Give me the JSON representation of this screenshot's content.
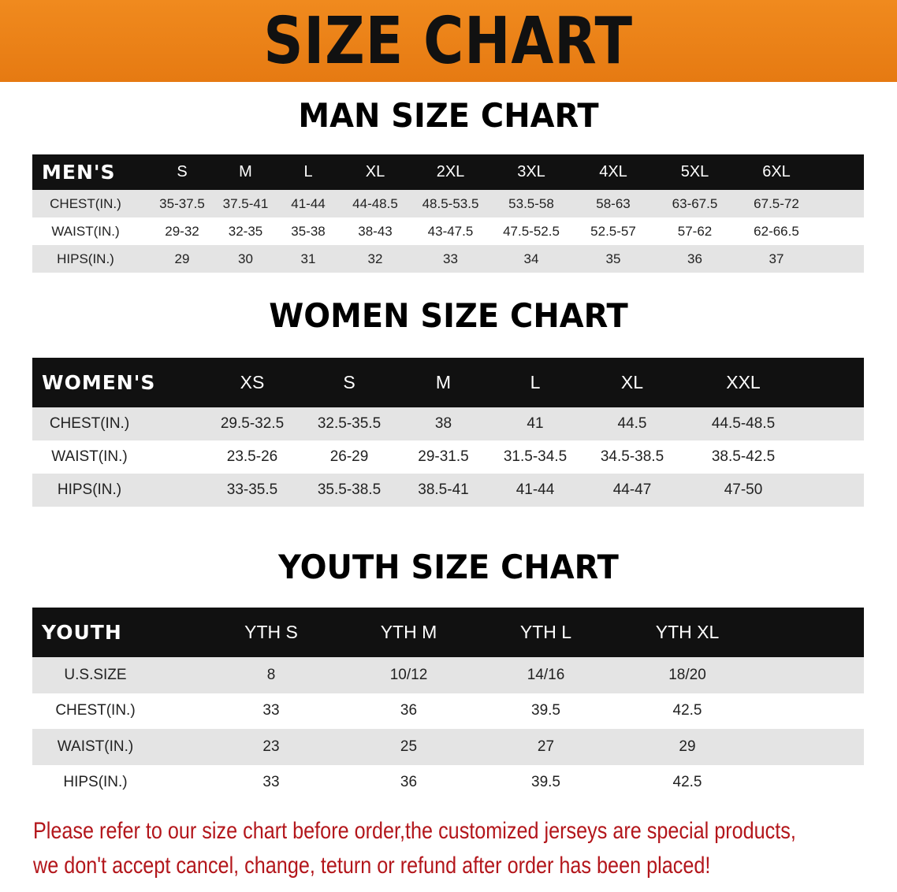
{
  "banner": {
    "title": "SIZE CHART",
    "color": "#ec8218"
  },
  "men": {
    "title": "MAN SIZE CHART",
    "header": [
      "MEN'S",
      "S",
      "M",
      "L",
      "XL",
      "2XL",
      "3XL",
      "4XL",
      "5XL",
      "6XL"
    ],
    "rows": [
      [
        "CHEST(IN.)",
        "35-37.5",
        "37.5-41",
        "41-44",
        "44-48.5",
        "48.5-53.5",
        "53.5-58",
        "58-63",
        "63-67.5",
        "67.5-72"
      ],
      [
        "WAIST(IN.)",
        "29-32",
        "32-35",
        "35-38",
        "38-43",
        "43-47.5",
        "47.5-52.5",
        "52.5-57",
        "57-62",
        "62-66.5"
      ],
      [
        "HIPS(IN.)",
        "29",
        "30",
        "31",
        "32",
        "33",
        "34",
        "35",
        "36",
        "37"
      ]
    ]
  },
  "women": {
    "title": "WOMEN SIZE CHART",
    "header": [
      "WOMEN'S",
      "XS",
      "S",
      "M",
      "L",
      "XL",
      "XXL"
    ],
    "rows": [
      [
        "CHEST(IN.)",
        "29.5-32.5",
        "32.5-35.5",
        "38",
        "41",
        "44.5",
        "44.5-48.5"
      ],
      [
        "WAIST(IN.)",
        "23.5-26",
        "26-29",
        "29-31.5",
        "31.5-34.5",
        "34.5-38.5",
        "38.5-42.5"
      ],
      [
        "HIPS(IN.)",
        "33-35.5",
        "35.5-38.5",
        "38.5-41",
        "41-44",
        "44-47",
        "47-50"
      ]
    ]
  },
  "youth": {
    "title": "YOUTH SIZE CHART",
    "header": [
      "YOUTH",
      "YTH S",
      "YTH M",
      "YTH L",
      "YTH XL"
    ],
    "rows": [
      [
        "U.S.SIZE",
        "8",
        "10/12",
        "14/16",
        "18/20"
      ],
      [
        "CHEST(IN.)",
        "33",
        "36",
        "39.5",
        "42.5"
      ],
      [
        "WAIST(IN.)",
        "23",
        "25",
        "27",
        "29"
      ],
      [
        "HIPS(IN.)",
        "33",
        "36",
        "39.5",
        "42.5"
      ]
    ]
  },
  "notice": {
    "line1": "Please refer to our size chart before order,the customized jerseys are special products,",
    "line2": "we don't accept cancel, change, teturn or refund after order has been placed!",
    "color": "#b3161b"
  }
}
